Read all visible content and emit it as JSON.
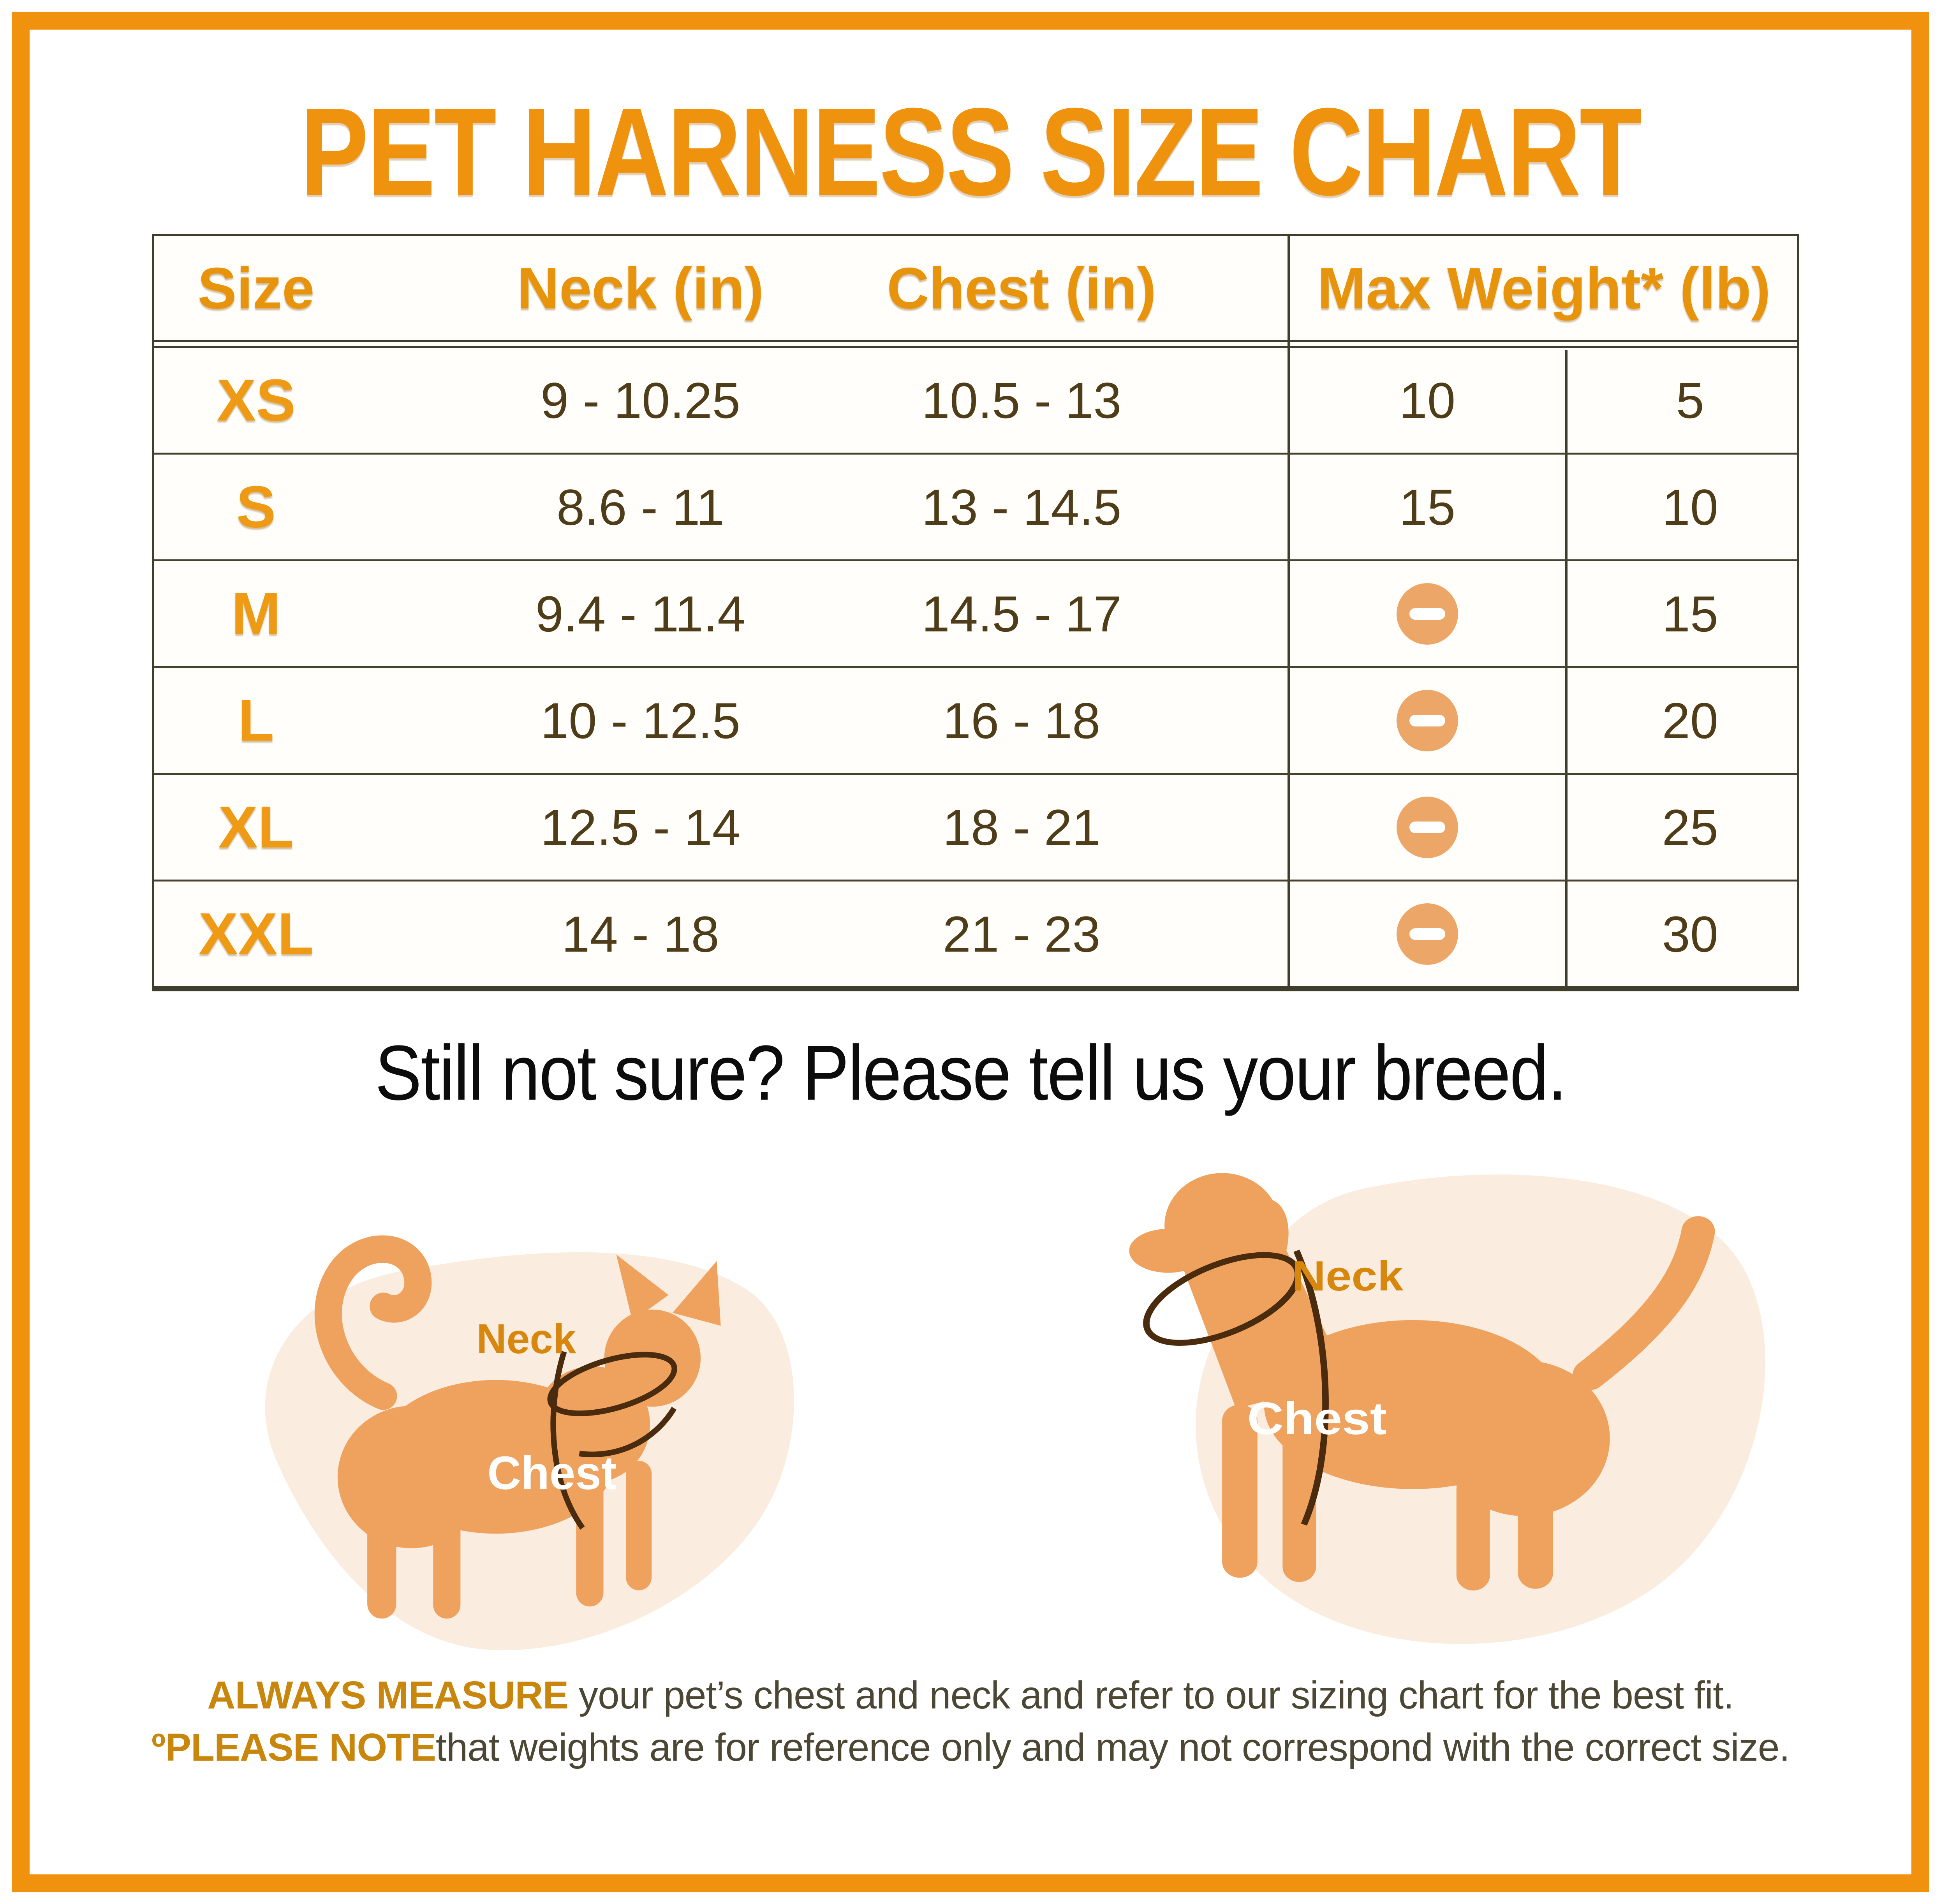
{
  "title": "PET HARNESS SIZE CHART",
  "table": {
    "headers": {
      "size": "Size",
      "neck": "Neck (in)",
      "chest": "Chest (in)",
      "max_weight": "Max Weight* (lb)"
    },
    "rows": [
      {
        "size": "XS",
        "neck": "9 - 10.25",
        "chest": "10.5 - 13",
        "weight_left": "10",
        "weight_right": "5"
      },
      {
        "size": "S",
        "neck": "8.6 - 11",
        "chest": "13 - 14.5",
        "weight_left": "15",
        "weight_right": "10"
      },
      {
        "size": "M",
        "neck": "9.4 - 11.4",
        "chest": "14.5 - 17",
        "weight_left": "minus-icon",
        "weight_right": "15"
      },
      {
        "size": "L",
        "neck": "10 - 12.5",
        "chest": "16 - 18",
        "weight_left": "minus-icon",
        "weight_right": "20"
      },
      {
        "size": "XL",
        "neck": "12.5 - 14",
        "chest": "18 - 21",
        "weight_left": "minus-icon",
        "weight_right": "25"
      },
      {
        "size": "XXL",
        "neck": "14 - 18",
        "chest": "21 - 23",
        "weight_left": "minus-icon",
        "weight_right": "30"
      }
    ]
  },
  "subtitle": "Still not sure? Please tell us your breed.",
  "diagrams": {
    "cat": {
      "animal": "cat",
      "neck_label": "Neck",
      "chest_label": "Chest"
    },
    "dog": {
      "animal": "dog",
      "neck_label": "Neck",
      "chest_label": "Chest"
    }
  },
  "notes": {
    "line1_highlight": "ALWAYS MEASURE",
    "line1_text": " your pet’s chest and neck and refer to our sizing chart for the best fit.",
    "line2_highlight": "ºPLEASE NOTE",
    "line2_text": "that weights are for reference only and may not correspond with the correct size."
  },
  "colors": {
    "frame_orange": "#F0920E",
    "title_orange": "#EF930E",
    "header_text": "#E8930C",
    "size_label": "#EE9A14",
    "value_text": "#4E3D18",
    "table_line": "#3F3D2C",
    "minus_circle": "#ECA768",
    "blob_background": "#FAECDE",
    "animal_silhouette": "#EFA25E",
    "harness_line": "#4A2B0D",
    "diagram_neck_label": "#D8870E",
    "diagram_chest_label": "#FFFFFF",
    "note_highlight": "#C8860D",
    "note_text": "#4B4734"
  }
}
